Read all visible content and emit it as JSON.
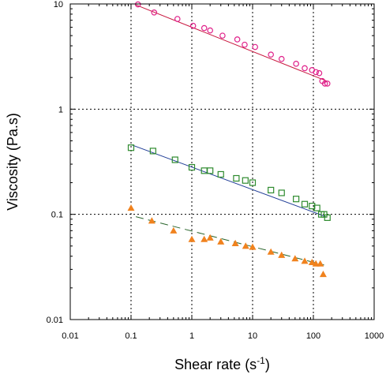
{
  "chart_data": {
    "type": "scatter",
    "xlabel": "Shear rate (s",
    "xlabel_superscript": "-1",
    "xlabel_suffix": ")",
    "ylabel": "Viscosity (Pa.s)",
    "xscale": "log",
    "yscale": "log",
    "xlim": [
      0.01,
      1000
    ],
    "ylim": [
      0.01,
      10
    ],
    "xticks": [
      0.01,
      0.1,
      1,
      10,
      100,
      1000
    ],
    "xtick_labels": [
      "0.01",
      "0.1",
      "1",
      "10",
      "100",
      "1000"
    ],
    "yticks": [
      0.01,
      0.1,
      1,
      10
    ],
    "ytick_labels": [
      "0.01",
      "0.1",
      "1",
      "10"
    ],
    "grid": "dotted, at major decades",
    "legend": "none",
    "series": [
      {
        "marker": "open-circle",
        "color": "#e0218a",
        "fit_line": {
          "style": "solid",
          "color": "#c8143c",
          "x": [
            0.12,
            165
          ],
          "y": [
            9.8,
            1.85
          ]
        },
        "points": [
          {
            "x": 0.13,
            "y": 9.9
          },
          {
            "x": 0.24,
            "y": 8.3
          },
          {
            "x": 0.58,
            "y": 7.2
          },
          {
            "x": 1.05,
            "y": 6.2
          },
          {
            "x": 1.6,
            "y": 5.9
          },
          {
            "x": 2.0,
            "y": 5.6
          },
          {
            "x": 3.2,
            "y": 5.0
          },
          {
            "x": 5.6,
            "y": 4.6
          },
          {
            "x": 7.4,
            "y": 4.1
          },
          {
            "x": 11,
            "y": 3.9
          },
          {
            "x": 20,
            "y": 3.3
          },
          {
            "x": 30,
            "y": 3.0
          },
          {
            "x": 52,
            "y": 2.7
          },
          {
            "x": 72,
            "y": 2.45
          },
          {
            "x": 95,
            "y": 2.35
          },
          {
            "x": 110,
            "y": 2.25
          },
          {
            "x": 125,
            "y": 2.2
          },
          {
            "x": 140,
            "y": 1.85
          },
          {
            "x": 155,
            "y": 1.75
          },
          {
            "x": 170,
            "y": 1.75
          }
        ]
      },
      {
        "marker": "open-square",
        "color": "#2e8b2e",
        "fit_line": {
          "style": "solid",
          "color": "#1e3c96",
          "x": [
            0.1,
            160
          ],
          "y": [
            0.46,
            0.095
          ]
        },
        "points": [
          {
            "x": 0.1,
            "y": 0.43
          },
          {
            "x": 0.23,
            "y": 0.4
          },
          {
            "x": 0.53,
            "y": 0.33
          },
          {
            "x": 1.0,
            "y": 0.28
          },
          {
            "x": 1.6,
            "y": 0.26
          },
          {
            "x": 2.0,
            "y": 0.26
          },
          {
            "x": 3.0,
            "y": 0.24
          },
          {
            "x": 5.4,
            "y": 0.22
          },
          {
            "x": 7.6,
            "y": 0.21
          },
          {
            "x": 10,
            "y": 0.2
          },
          {
            "x": 20,
            "y": 0.17
          },
          {
            "x": 30,
            "y": 0.16
          },
          {
            "x": 52,
            "y": 0.14
          },
          {
            "x": 72,
            "y": 0.125
          },
          {
            "x": 95,
            "y": 0.12
          },
          {
            "x": 115,
            "y": 0.115
          },
          {
            "x": 135,
            "y": 0.1
          },
          {
            "x": 150,
            "y": 0.1
          },
          {
            "x": 170,
            "y": 0.093
          }
        ]
      },
      {
        "marker": "filled-triangle",
        "color": "#f0821e",
        "fit_line": {
          "style": "dashed",
          "color": "#28642a",
          "x": [
            0.12,
            150
          ],
          "y": [
            0.095,
            0.033
          ]
        },
        "points": [
          {
            "x": 0.1,
            "y": 0.115
          },
          {
            "x": 0.22,
            "y": 0.087
          },
          {
            "x": 0.5,
            "y": 0.07
          },
          {
            "x": 1.0,
            "y": 0.058
          },
          {
            "x": 1.6,
            "y": 0.058
          },
          {
            "x": 2.0,
            "y": 0.06
          },
          {
            "x": 3.0,
            "y": 0.055
          },
          {
            "x": 5.2,
            "y": 0.053
          },
          {
            "x": 7.7,
            "y": 0.05
          },
          {
            "x": 10,
            "y": 0.049
          },
          {
            "x": 20,
            "y": 0.044
          },
          {
            "x": 30,
            "y": 0.041
          },
          {
            "x": 50,
            "y": 0.038
          },
          {
            "x": 72,
            "y": 0.036
          },
          {
            "x": 95,
            "y": 0.035
          },
          {
            "x": 110,
            "y": 0.034
          },
          {
            "x": 130,
            "y": 0.034
          },
          {
            "x": 145,
            "y": 0.027
          }
        ]
      }
    ]
  }
}
